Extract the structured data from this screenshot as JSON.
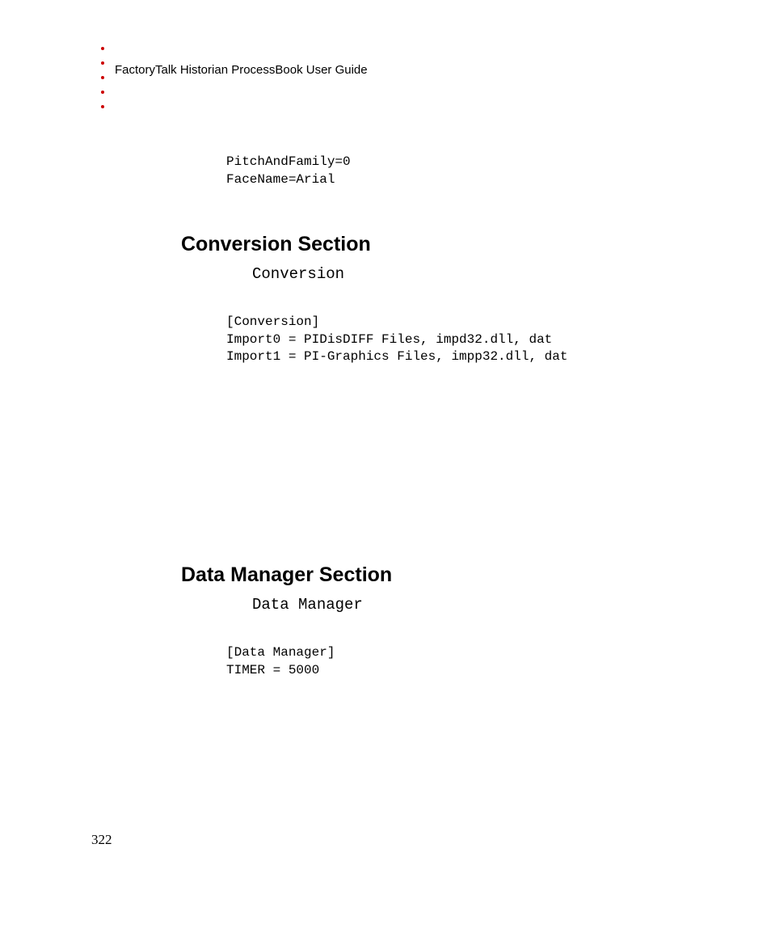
{
  "header": {
    "title": "FactoryTalk Historian ProcessBook User Guide",
    "bullet_color": "#cc0000",
    "bullet_count": 5
  },
  "top_code": {
    "lines": "PitchAndFamily=0\nFaceName=Arial"
  },
  "section1": {
    "heading": "Conversion Section",
    "subtitle": "Conversion",
    "code": "[Conversion]\nImport0 = PIDisDIFF Files, impd32.dll, dat\nImport1 = PI-Graphics Files, impp32.dll, dat"
  },
  "section2": {
    "heading": "Data Manager Section",
    "subtitle": "Data Manager",
    "code": "[Data Manager]\nTIMER = 5000"
  },
  "page_number": "322",
  "styling": {
    "background_color": "#ffffff",
    "text_color": "#000000",
    "heading_font": "Verdana",
    "heading_fontsize_pt": 19,
    "heading_fontweight": "bold",
    "subtitle_font": "Courier New",
    "subtitle_fontsize_pt": 14,
    "code_font": "Courier New",
    "code_fontsize_pt": 12,
    "header_fontsize_pt": 11,
    "pagenum_font": "Georgia",
    "pagenum_fontsize_pt": 13
  }
}
